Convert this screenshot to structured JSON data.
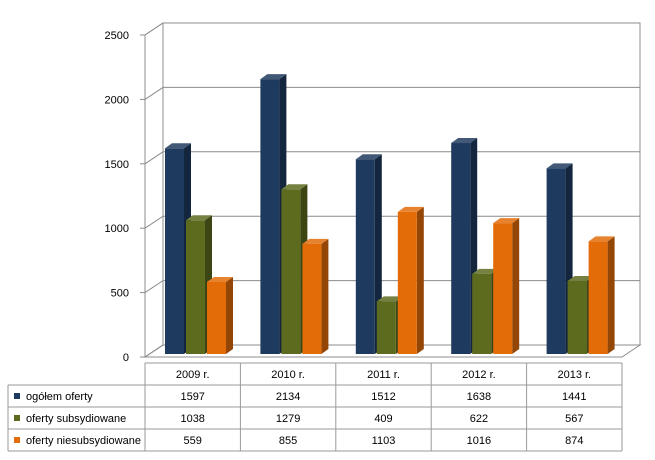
{
  "chart_data": {
    "type": "bar",
    "categories": [
      "2009 r.",
      "2010 r.",
      "2011 r.",
      "2012 r.",
      "2013 r."
    ],
    "series": [
      {
        "name": "ogółem oferty",
        "values": [
          1597,
          2134,
          1512,
          1638,
          1441
        ],
        "color": "#1f3a5f"
      },
      {
        "name": "oferty subsydiowane",
        "values": [
          1038,
          1279,
          409,
          622,
          567
        ],
        "color": "#5c6b1e"
      },
      {
        "name": "oferty niesubsydiowane",
        "values": [
          559,
          855,
          1103,
          1016,
          874
        ],
        "color": "#e36c09"
      }
    ],
    "ylim": [
      0,
      2500
    ],
    "yticks": [
      0,
      500,
      1000,
      1500,
      2000,
      2500
    ],
    "grid": true,
    "legend": "data-table",
    "style": "3d"
  }
}
